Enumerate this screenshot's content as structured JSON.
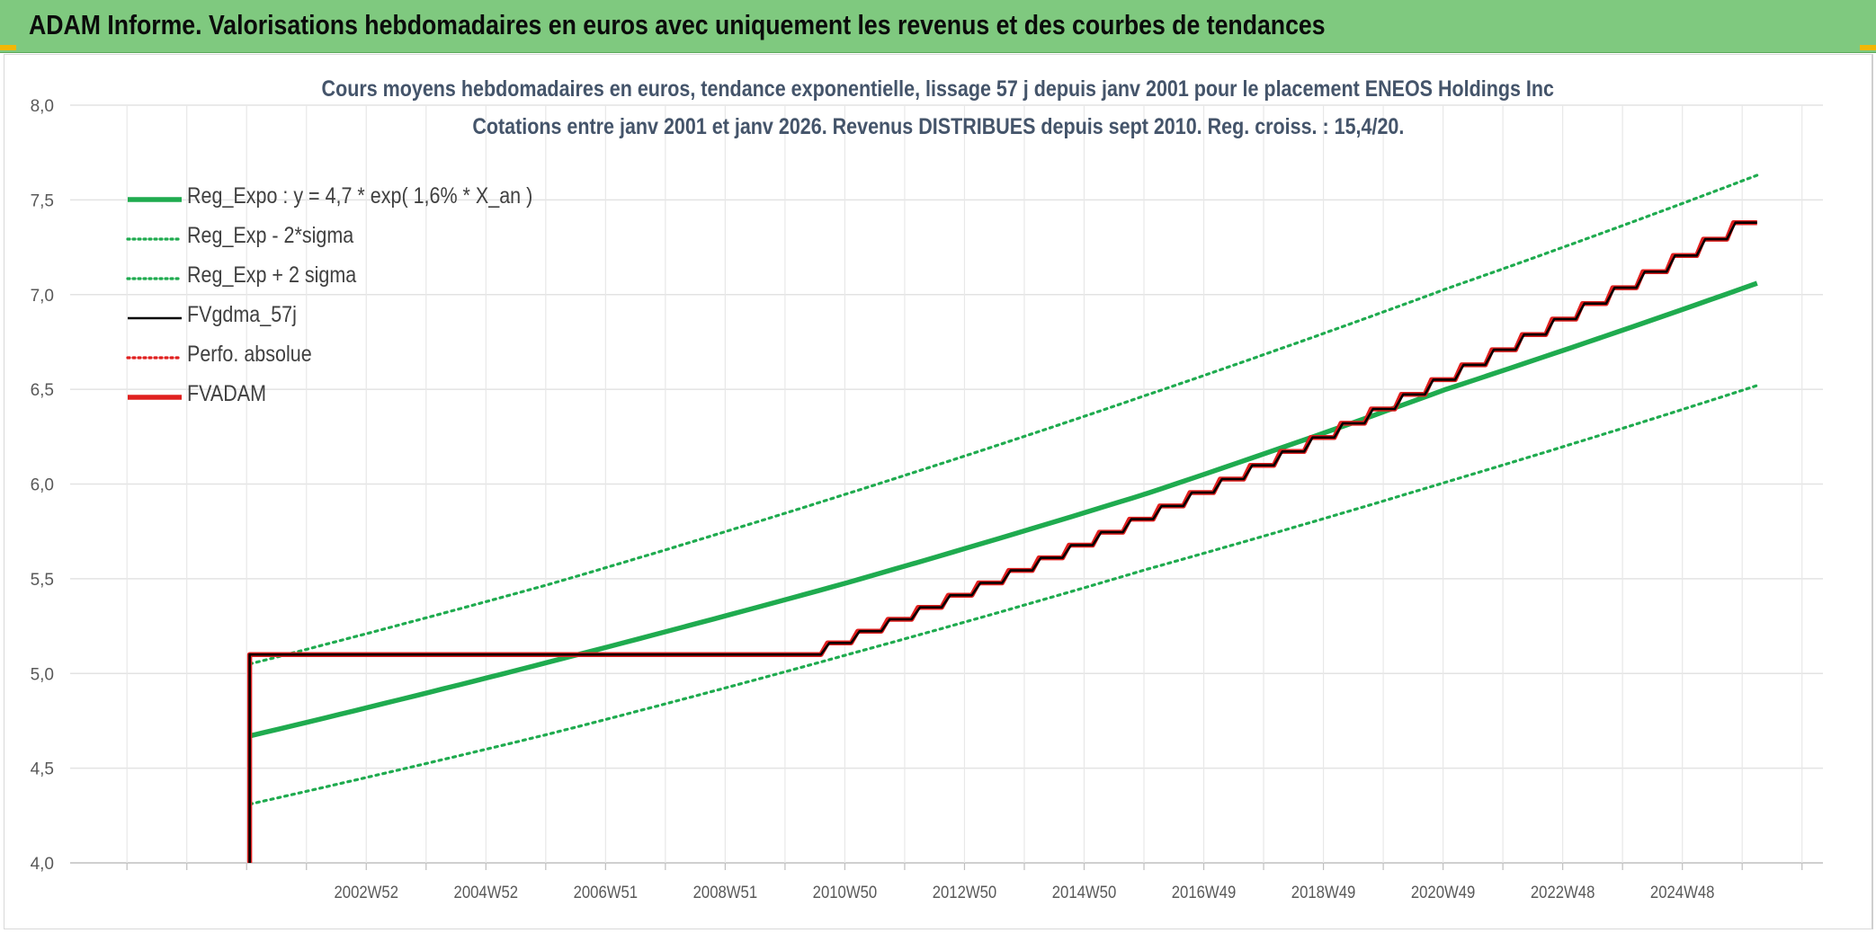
{
  "banner": {
    "title": "ADAM Informe. Valorisations hebdomadaires en euros avec uniquement les revenus et des courbes de tendances"
  },
  "chart_data": {
    "type": "line",
    "title_line1": "Cours moyens hebdomadaires en euros, tendance exponentielle, lissage 57 j depuis janv 2001 pour le placement ENEOS Holdings Inc",
    "title_line2": "Cotations entre janv 2001 et janv 2026. Revenus DISTRIBUES depuis sept 2010. Reg. croiss. : 15,4/20.",
    "xlabel": "",
    "ylabel": "",
    "ylim": [
      4.0,
      8.0
    ],
    "y_ticks": [
      "4,0",
      "4,5",
      "5,0",
      "5,5",
      "6,0",
      "6,5",
      "7,0",
      "7,5",
      "8,0"
    ],
    "x_range_years": [
      1998.0,
      2027.3
    ],
    "x_ticks": [
      {
        "year": 2002.95,
        "label": "2002W52"
      },
      {
        "year": 2004.95,
        "label": "2004W52"
      },
      {
        "year": 2006.95,
        "label": "2006W51"
      },
      {
        "year": 2008.95,
        "label": "2008W51"
      },
      {
        "year": 2010.95,
        "label": "2010W50"
      },
      {
        "year": 2012.95,
        "label": "2012W50"
      },
      {
        "year": 2014.95,
        "label": "2014W50"
      },
      {
        "year": 2016.95,
        "label": "2016W49"
      },
      {
        "year": 2018.95,
        "label": "2018W49"
      },
      {
        "year": 2020.95,
        "label": "2020W49"
      },
      {
        "year": 2022.95,
        "label": "2022W48"
      },
      {
        "year": 2024.95,
        "label": "2024W48"
      }
    ],
    "grid": true,
    "legend_position": "top-left",
    "series": [
      {
        "name": "Reg_Expo : y = 4,7 * exp( 1,6% *  X_an )",
        "color": "#1fab4f",
        "style": "solid-thick",
        "points": [
          [
            2001.0,
            4.67
          ],
          [
            2006.0,
            5.06
          ],
          [
            2011.0,
            5.48
          ],
          [
            2016.0,
            5.95
          ],
          [
            2021.0,
            6.5
          ],
          [
            2026.2,
            7.06
          ]
        ]
      },
      {
        "name": "Reg_Exp - 2*sigma",
        "color": "#1fab4f",
        "style": "dotted",
        "points": [
          [
            2001.0,
            4.31
          ],
          [
            2006.0,
            4.68
          ],
          [
            2011.0,
            5.1
          ],
          [
            2016.0,
            5.55
          ],
          [
            2021.0,
            6.01
          ],
          [
            2026.2,
            6.52
          ]
        ]
      },
      {
        "name": "Reg_Exp + 2 sigma",
        "color": "#1fab4f",
        "style": "dotted",
        "points": [
          [
            2001.0,
            5.05
          ],
          [
            2006.0,
            5.47
          ],
          [
            2011.0,
            5.95
          ],
          [
            2016.0,
            6.47
          ],
          [
            2021.0,
            7.03
          ],
          [
            2026.2,
            7.63
          ]
        ]
      },
      {
        "name": "FVgdma_57j",
        "color": "#000000",
        "style": "solid",
        "start": 2001.0,
        "start_value": 5.1,
        "flat_until": 2010.55,
        "end": 2026.2,
        "end_value": 7.38,
        "steps": 31
      },
      {
        "name": "Perfo. absolue",
        "color": "#e0201f",
        "style": "dotted",
        "points": []
      },
      {
        "name": "FVADAM",
        "color": "#e0201f",
        "style": "solid-thick",
        "start": 2001.0,
        "start_value": 5.1,
        "flat_until": 2010.55,
        "end": 2026.2,
        "end_value": 7.38,
        "steps": 31
      }
    ]
  }
}
